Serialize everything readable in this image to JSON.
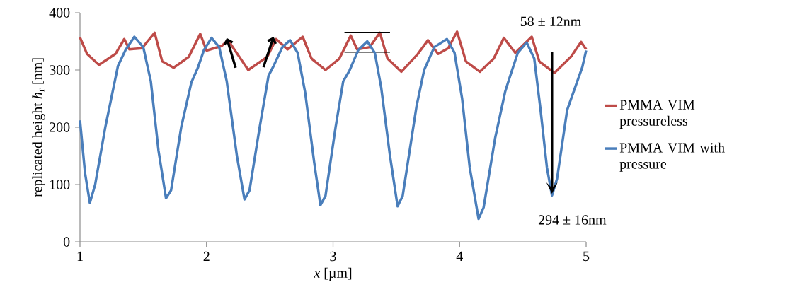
{
  "chart_data": {
    "type": "line",
    "xlabel": "*x* [µm]",
    "ylabel": "replicated height *h*$_{r}$  [nm]",
    "xlim": [
      1,
      5
    ],
    "ylim": [
      0,
      400
    ],
    "xticks": [
      1,
      2,
      3,
      4,
      5
    ],
    "yticks": [
      0,
      100,
      200,
      300,
      400
    ],
    "grid": false,
    "legend": "right",
    "marker": "none",
    "line_style": "solid",
    "annotations": [
      "58 ± 12nm",
      "294 ± 16nm"
    ],
    "series": [
      {
        "name": "PMMA VIM pressureless",
        "color": "#be4b48",
        "x": [
          1.0,
          1.056,
          1.15,
          1.28,
          1.35,
          1.39,
          1.49,
          1.59,
          1.65,
          1.74,
          1.86,
          1.95,
          2.0,
          2.12,
          2.17,
          2.33,
          2.48,
          2.55,
          2.64,
          2.76,
          2.83,
          2.94,
          3.05,
          3.14,
          3.19,
          3.29,
          3.37,
          3.43,
          3.54,
          3.67,
          3.75,
          3.83,
          3.91,
          3.98,
          4.05,
          4.16,
          4.27,
          4.35,
          4.44,
          4.57,
          4.63,
          4.75,
          4.88,
          4.96,
          5.0
        ],
        "values": [
          357,
          328,
          309,
          328,
          354,
          336,
          338,
          365,
          315,
          304,
          323,
          363,
          334,
          342,
          352,
          300,
          323,
          354,
          336,
          358,
          320,
          300,
          320,
          360,
          336,
          340,
          365,
          320,
          297,
          328,
          352,
          328,
          338,
          367,
          315,
          297,
          320,
          356,
          330,
          358,
          315,
          295,
          323,
          349,
          336
        ]
      },
      {
        "color": "#000000",
        "type": "line",
        "x": [
          3.09,
          3.45
        ],
        "values": [
          366,
          366
        ]
      },
      {
        "color": "#000000",
        "type": "line",
        "x": [
          3.09,
          3.45
        ],
        "values": [
          331,
          331
        ]
      },
      {
        "name": "PMMA VIM with pressure",
        "color": "#4a7ebb",
        "x": [
          1.0,
          1.04,
          1.078,
          1.12,
          1.2,
          1.3,
          1.36,
          1.43,
          1.5,
          1.56,
          1.62,
          1.68,
          1.72,
          1.8,
          1.88,
          1.93,
          1.98,
          2.04,
          2.1,
          2.16,
          2.24,
          2.3,
          2.34,
          2.42,
          2.49,
          2.53,
          2.6,
          2.66,
          2.72,
          2.78,
          2.85,
          2.9,
          2.94,
          3.02,
          3.08,
          3.13,
          3.2,
          3.27,
          3.33,
          3.38,
          3.45,
          3.51,
          3.55,
          3.66,
          3.72,
          3.8,
          3.9,
          3.96,
          4.02,
          4.08,
          4.15,
          4.19,
          4.28,
          4.36,
          4.39,
          4.46,
          4.53,
          4.59,
          4.64,
          4.69,
          4.73,
          4.77,
          4.85,
          4.92,
          4.97,
          5.0
        ],
        "values": [
          212,
          120,
          68,
          100,
          200,
          307,
          335,
          358,
          340,
          280,
          160,
          76,
          90,
          200,
          278,
          303,
          335,
          356,
          340,
          280,
          150,
          74,
          90,
          200,
          290,
          307,
          340,
          352,
          330,
          260,
          140,
          64,
          80,
          200,
          280,
          299,
          335,
          350,
          330,
          270,
          150,
          62,
          80,
          237,
          300,
          340,
          354,
          330,
          250,
          130,
          40,
          60,
          180,
          262,
          283,
          330,
          348,
          320,
          230,
          130,
          81,
          110,
          230,
          274,
          305,
          334
        ]
      }
    ]
  }
}
